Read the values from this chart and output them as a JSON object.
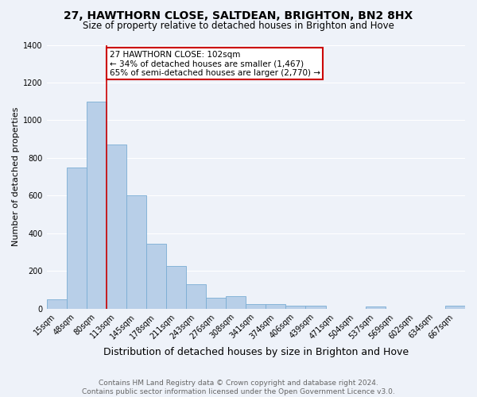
{
  "title": "27, HAWTHORN CLOSE, SALTDEAN, BRIGHTON, BN2 8HX",
  "subtitle": "Size of property relative to detached houses in Brighton and Hove",
  "xlabel": "Distribution of detached houses by size in Brighton and Hove",
  "ylabel": "Number of detached properties",
  "footer1": "Contains HM Land Registry data © Crown copyright and database right 2024.",
  "footer2": "Contains public sector information licensed under the Open Government Licence v3.0.",
  "categories": [
    "15sqm",
    "48sqm",
    "80sqm",
    "113sqm",
    "145sqm",
    "178sqm",
    "211sqm",
    "243sqm",
    "276sqm",
    "308sqm",
    "341sqm",
    "374sqm",
    "406sqm",
    "439sqm",
    "471sqm",
    "504sqm",
    "537sqm",
    "569sqm",
    "602sqm",
    "634sqm",
    "667sqm"
  ],
  "values": [
    50,
    750,
    1100,
    870,
    600,
    345,
    225,
    130,
    60,
    65,
    25,
    25,
    18,
    15,
    0,
    0,
    12,
    0,
    0,
    0,
    15
  ],
  "bar_color": "#b8cfe8",
  "bar_edge_color": "#7aadd4",
  "annotation_box_text": "27 HAWTHORN CLOSE: 102sqm\n← 34% of detached houses are smaller (1,467)\n65% of semi-detached houses are larger (2,770) →",
  "annotation_box_color": "#ffffff",
  "annotation_box_edge_color": "#cc0000",
  "vline_x_index": 2.5,
  "vline_color": "#cc0000",
  "ylim": [
    0,
    1400
  ],
  "yticks": [
    0,
    200,
    400,
    600,
    800,
    1000,
    1200,
    1400
  ],
  "background_color": "#eef2f9",
  "grid_color": "#ffffff",
  "title_fontsize": 10,
  "subtitle_fontsize": 8.5,
  "xlabel_fontsize": 9,
  "ylabel_fontsize": 8,
  "tick_fontsize": 7,
  "annotation_fontsize": 7.5,
  "footer_fontsize": 6.5
}
